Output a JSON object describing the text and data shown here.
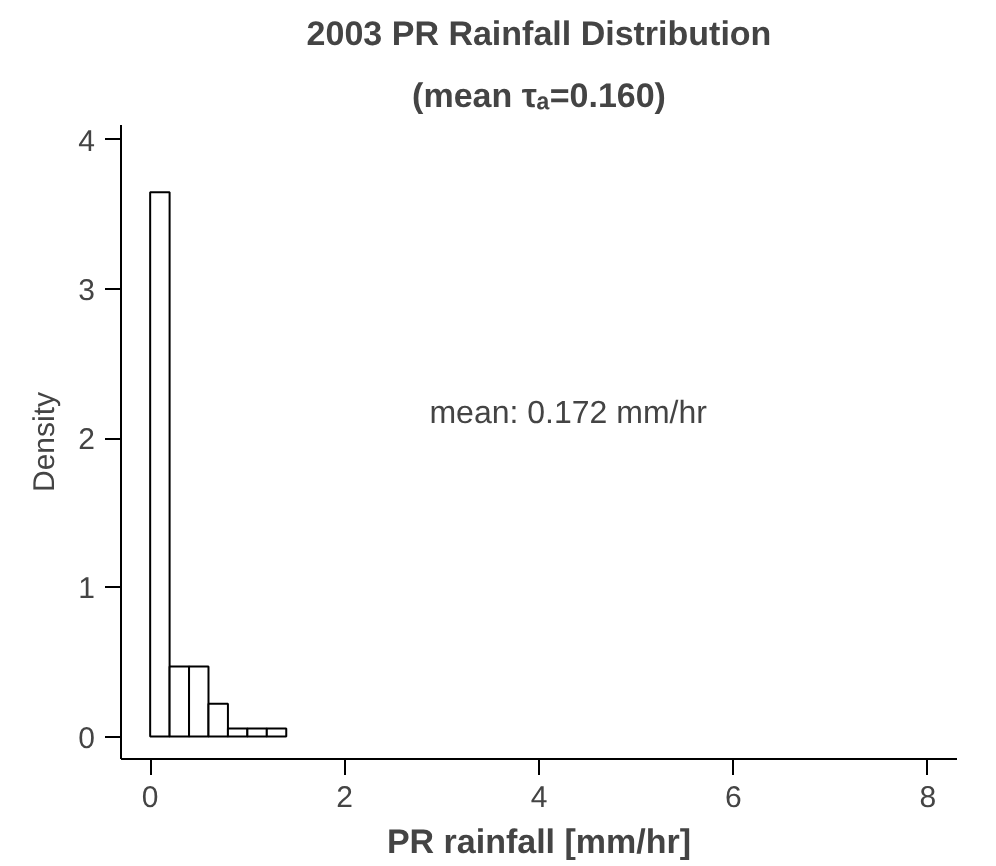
{
  "chart_data": {
    "type": "histogram",
    "title": "2003 PR Rainfall Distribution",
    "subtitle": "(mean τₐ=0.160)",
    "xlabel": "PR rainfall [mm/hr]",
    "ylabel": "Density",
    "bins": [
      0,
      0.2,
      0.4,
      0.6,
      0.8,
      1.0,
      1.2,
      1.4
    ],
    "values": [
      3.65,
      0.47,
      0.47,
      0.22,
      0.055,
      0.055,
      0.055
    ],
    "color": "#ffffff",
    "xlim": [
      -0.3,
      8.3
    ],
    "ylim": [
      -0.15,
      4.1
    ],
    "xticks": [
      0,
      2,
      4,
      6,
      8
    ],
    "yticks": [
      0,
      1,
      2,
      3,
      4
    ],
    "grid": false,
    "annotations": [
      "mean: 0.172 mm/hr"
    ]
  }
}
